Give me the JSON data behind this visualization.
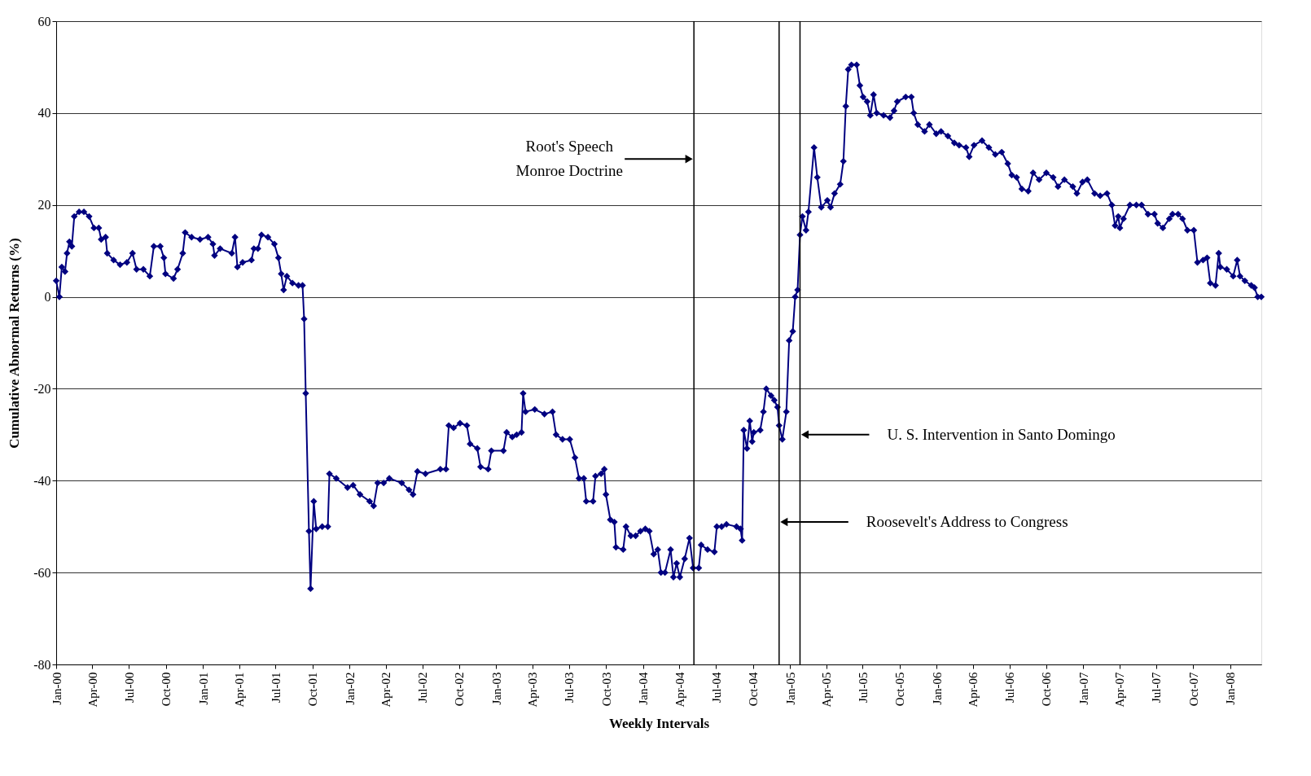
{
  "chart_data": {
    "type": "line",
    "xlabel": "Weekly Intervals",
    "ylabel": "Cumulative Abnormal Returns (%)",
    "x": [
      "1900-01-01",
      "1900-01-09",
      "1900-01-15",
      "1900-01-23",
      "1900-01-28",
      "1900-02-03",
      "1900-02-09",
      "1900-02-15",
      "1900-02-27",
      "1900-03-11",
      "1900-03-24",
      "1900-04-05",
      "1900-04-17",
      "1900-04-23",
      "1900-05-04",
      "1900-05-08",
      "1900-05-24",
      "1900-06-09",
      "1900-06-26",
      "1900-07-10",
      "1900-07-20",
      "1900-08-06",
      "1900-08-22",
      "1900-09-01",
      "1900-09-17",
      "1900-09-26",
      "1900-09-30",
      "1900-10-20",
      "1900-10-30",
      "1900-11-12",
      "1900-11-18",
      "1900-12-04",
      "1900-12-25",
      "1901-01-14",
      "1901-01-26",
      "1901-01-30",
      "1901-02-13",
      "1901-03-14",
      "1901-03-22",
      "1901-03-28",
      "1901-04-10",
      "1901-05-02",
      "1901-05-08",
      "1901-05-18",
      "1901-05-27",
      "1901-06-12",
      "1901-06-28",
      "1901-07-08",
      "1901-07-15",
      "1901-07-21",
      "1901-07-29",
      "1901-08-12",
      "1901-08-27",
      "1901-09-06",
      "1901-09-10",
      "1901-09-14",
      "1901-09-22",
      "1901-09-26",
      "1901-10-04",
      "1901-10-10",
      "1901-10-25",
      "1901-11-08",
      "1901-11-12",
      "1901-11-29",
      "1901-12-27",
      "1902-01-10",
      "1902-01-27",
      "1902-02-20",
      "1902-03-02",
      "1902-03-12",
      "1902-03-27",
      "1902-04-10",
      "1902-05-11",
      "1902-05-29",
      "1902-06-08",
      "1902-06-19",
      "1902-07-09",
      "1902-08-15",
      "1902-08-29",
      "1902-09-05",
      "1902-09-17",
      "1902-10-03",
      "1902-10-20",
      "1902-10-28",
      "1902-11-15",
      "1902-11-23",
      "1902-12-12",
      "1902-12-20",
      "1903-01-19",
      "1903-01-27",
      "1903-02-10",
      "1903-02-21",
      "1903-03-05",
      "1903-03-09",
      "1903-03-15",
      "1903-04-07",
      "1903-05-01",
      "1903-05-21",
      "1903-05-30",
      "1903-06-15",
      "1903-07-03",
      "1903-07-16",
      "1903-07-26",
      "1903-08-07",
      "1903-08-13",
      "1903-08-30",
      "1903-09-05",
      "1903-09-19",
      "1903-09-27",
      "1903-10-01",
      "1903-10-12",
      "1903-10-22",
      "1903-10-26",
      "1903-11-13",
      "1903-11-20",
      "1903-12-02",
      "1903-12-14",
      "1903-12-26",
      "1904-01-07",
      "1904-01-17",
      "1904-01-28",
      "1904-02-07",
      "1904-02-15",
      "1904-02-25",
      "1904-03-10",
      "1904-03-17",
      "1904-03-25",
      "1904-04-02",
      "1904-04-14",
      "1904-04-26",
      "1904-05-05",
      "1904-05-19",
      "1904-05-25",
      "1904-06-10",
      "1904-06-27",
      "1904-07-03",
      "1904-07-15",
      "1904-07-27",
      "1904-08-21",
      "1904-08-31",
      "1904-09-04",
      "1904-09-08",
      "1904-09-16",
      "1904-09-23",
      "1904-09-29",
      "1904-10-03",
      "1904-10-19",
      "1904-10-27",
      "1904-11-03",
      "1904-11-15",
      "1904-11-23",
      "1904-12-01",
      "1904-12-05",
      "1904-12-13",
      "1904-12-23",
      "1904-12-30",
      "1905-01-08",
      "1905-01-14",
      "1905-01-20",
      "1905-01-26",
      "1905-02-01",
      "1905-02-10",
      "1905-02-16",
      "1905-03-02",
      "1905-03-10",
      "1905-03-20",
      "1905-04-04",
      "1905-04-12",
      "1905-04-22",
      "1905-05-06",
      "1905-05-14",
      "1905-05-20",
      "1905-05-26",
      "1905-06-03",
      "1905-06-16",
      "1905-06-24",
      "1905-07-02",
      "1905-07-12",
      "1905-07-20",
      "1905-07-28",
      "1905-08-05",
      "1905-08-22",
      "1905-09-07",
      "1905-09-17",
      "1905-09-25",
      "1905-10-16",
      "1905-10-30",
      "1905-11-05",
      "1905-11-15",
      "1905-12-02",
      "1905-12-14",
      "1905-12-31",
      "1906-01-12",
      "1906-01-29",
      "1906-02-14",
      "1906-02-26",
      "1906-03-15",
      "1906-03-23",
      "1906-04-04",
      "1906-04-24",
      "1906-05-11",
      "1906-05-27",
      "1906-06-12",
      "1906-06-27",
      "1906-07-07",
      "1906-07-19",
      "1906-08-01",
      "1906-08-17",
      "1906-08-29",
      "1906-09-13",
      "1906-10-01",
      "1906-10-18",
      "1906-10-30",
      "1906-11-15",
      "1906-12-06",
      "1906-12-16",
      "1906-12-30",
      "1907-01-11",
      "1907-01-29",
      "1907-02-12",
      "1907-03-01",
      "1907-03-13",
      "1907-03-21",
      "1907-03-29",
      "1907-04-02",
      "1907-04-11",
      "1907-04-27",
      "1907-05-13",
      "1907-05-26",
      "1907-06-11",
      "1907-06-27",
      "1907-07-05",
      "1907-07-18",
      "1907-08-03",
      "1907-08-11",
      "1907-08-25",
      "1907-09-05",
      "1907-09-17",
      "1907-10-03",
      "1907-10-12",
      "1907-10-26",
      "1907-11-05",
      "1907-11-13",
      "1907-11-26",
      "1907-12-04",
      "1907-12-08",
      "1907-12-24",
      "1908-01-09",
      "1908-01-19",
      "1908-01-26",
      "1908-02-07",
      "1908-02-23",
      "1908-03-02",
      "1908-03-10",
      "1908-03-19"
    ],
    "series": [
      {
        "color": "#000080",
        "values": [
          3.5,
          0,
          6.5,
          5.5,
          9.5,
          12,
          11,
          17.5,
          18.5,
          18.5,
          17.5,
          15,
          15,
          12.5,
          13,
          9.5,
          8,
          7,
          7.5,
          9.5,
          6,
          6,
          4.5,
          11,
          11,
          8.5,
          5,
          4,
          6,
          9.5,
          14,
          13,
          12.5,
          13,
          11.5,
          9,
          10.5,
          9.5,
          13,
          6.5,
          7.5,
          8,
          10.5,
          10.5,
          13.5,
          13,
          11.5,
          8.5,
          5,
          1.5,
          4.5,
          3,
          2.5,
          2.5,
          -4.8,
          -21,
          -51,
          -63.5,
          -44.5,
          -50.5,
          -50,
          -50,
          -38.5,
          -39.5,
          -41.5,
          -41,
          -43,
          -44.5,
          -45.5,
          -40.5,
          -40.5,
          -39.5,
          -40.5,
          -42,
          -43,
          -38,
          -38.5,
          -37.5,
          -37.5,
          -28,
          -28.5,
          -27.5,
          -28,
          -32,
          -33,
          -37,
          -37.5,
          -33.5,
          -33.5,
          -29.5,
          -30.5,
          -30,
          -29.5,
          -21,
          -25,
          -24.5,
          -25.5,
          -25,
          -30,
          -31,
          -31,
          -35,
          -39.5,
          -39.5,
          -44.5,
          -44.5,
          -39,
          -38.5,
          -37.5,
          -43,
          -48.5,
          -49,
          -54.5,
          -55,
          -50,
          -52,
          -52,
          -51,
          -50.5,
          -51,
          -56,
          -55,
          -60,
          -60,
          -55,
          -61,
          -58,
          -61,
          -57,
          -52.5,
          -59,
          -59,
          -54,
          -55,
          -55.5,
          -50,
          -50,
          -49.5,
          -50,
          -50.5,
          -53,
          -29,
          -33,
          -27,
          -31.5,
          -29.5,
          -29,
          -25,
          -20,
          -21.5,
          -22.5,
          -24,
          -28,
          -31,
          -25,
          -9.5,
          -7.5,
          0,
          1.5,
          13.5,
          17.5,
          14.5,
          18.5,
          32.5,
          26,
          19.5,
          21,
          19.5,
          22.5,
          24.5,
          29.5,
          41.5,
          49.5,
          50.5,
          50.5,
          46,
          43.5,
          42.5,
          39.5,
          44,
          40,
          39.5,
          39,
          40.5,
          42.5,
          43.5,
          43.5,
          40,
          37.5,
          36,
          37.5,
          35.5,
          36,
          35,
          33.5,
          33,
          32.5,
          30.5,
          33,
          34,
          32.5,
          31,
          31.5,
          29,
          26.5,
          26,
          23.5,
          23,
          27,
          25.5,
          27,
          26,
          24,
          25.5,
          24,
          22.5,
          25,
          25.5,
          22.5,
          22,
          22.5,
          20,
          15.5,
          17.5,
          15,
          17,
          20,
          20,
          20,
          18,
          18,
          16,
          15,
          17,
          18,
          18,
          17,
          14.5,
          14.5,
          7.5,
          8,
          8.5,
          3,
          2.5,
          9.5,
          6.5,
          6,
          4.5,
          8,
          4.5,
          3.5,
          2.5,
          2,
          0,
          0
        ]
      }
    ],
    "marker": "diamond",
    "line_style": "solid",
    "grid": "y",
    "xlim": [
      "1900-01-01",
      "1908-03-19"
    ],
    "xticks": [
      {
        "value": "1900-01-01",
        "label": "Jan-00"
      },
      {
        "value": "1900-04-01",
        "label": "Apr-00"
      },
      {
        "value": "1900-07-01",
        "label": "Jul-00"
      },
      {
        "value": "1900-10-01",
        "label": "Oct-00"
      },
      {
        "value": "1901-01-01",
        "label": "Jan-01"
      },
      {
        "value": "1901-04-01",
        "label": "Apr-01"
      },
      {
        "value": "1901-07-01",
        "label": "Jul-01"
      },
      {
        "value": "1901-10-01",
        "label": "Oct-01"
      },
      {
        "value": "1902-01-01",
        "label": "Jan-02"
      },
      {
        "value": "1902-04-01",
        "label": "Apr-02"
      },
      {
        "value": "1902-07-01",
        "label": "Jul-02"
      },
      {
        "value": "1902-10-01",
        "label": "Oct-02"
      },
      {
        "value": "1903-01-01",
        "label": "Jan-03"
      },
      {
        "value": "1903-04-01",
        "label": "Apr-03"
      },
      {
        "value": "1903-07-01",
        "label": "Jul-03"
      },
      {
        "value": "1903-10-01",
        "label": "Oct-03"
      },
      {
        "value": "1904-01-01",
        "label": "Jan-04"
      },
      {
        "value": "1904-04-01",
        "label": "Apr-04"
      },
      {
        "value": "1904-07-01",
        "label": "Jul-04"
      },
      {
        "value": "1904-10-01",
        "label": "Oct-04"
      },
      {
        "value": "1905-01-01",
        "label": "Jan-05"
      },
      {
        "value": "1905-04-01",
        "label": "Apr-05"
      },
      {
        "value": "1905-07-01",
        "label": "Jul-05"
      },
      {
        "value": "1905-10-01",
        "label": "Oct-05"
      },
      {
        "value": "1906-01-01",
        "label": "Jan-06"
      },
      {
        "value": "1906-04-01",
        "label": "Apr-06"
      },
      {
        "value": "1906-07-01",
        "label": "Jul-06"
      },
      {
        "value": "1906-10-01",
        "label": "Oct-06"
      },
      {
        "value": "1907-01-01",
        "label": "Jan-07"
      },
      {
        "value": "1907-04-01",
        "label": "Apr-07"
      },
      {
        "value": "1907-07-01",
        "label": "Jul-07"
      },
      {
        "value": "1907-10-01",
        "label": "Oct-07"
      },
      {
        "value": "1908-01-01",
        "label": "Jan-08"
      }
    ],
    "ylim": [
      -80,
      60
    ],
    "yticks": [
      -80,
      -60,
      -40,
      -20,
      0,
      20,
      40,
      60
    ],
    "ref_lines": [
      {
        "axis": "x",
        "value": "1904-05-07",
        "color": "#000000"
      },
      {
        "axis": "x",
        "value": "1904-12-05",
        "color": "#000000"
      },
      {
        "axis": "x",
        "value": "1905-01-26",
        "color": "#000000"
      }
    ],
    "annotations": [
      {
        "text": "Root's Speech\nMonroe Doctrine",
        "x": "1904-05-07",
        "y": 30
      },
      {
        "text": "Roosevelt's Address to Congress",
        "x": "1904-12-05",
        "y": -49
      },
      {
        "text": "U. S. Intervention in Santo Domingo",
        "x": "1905-01-26",
        "y": -30
      }
    ]
  }
}
